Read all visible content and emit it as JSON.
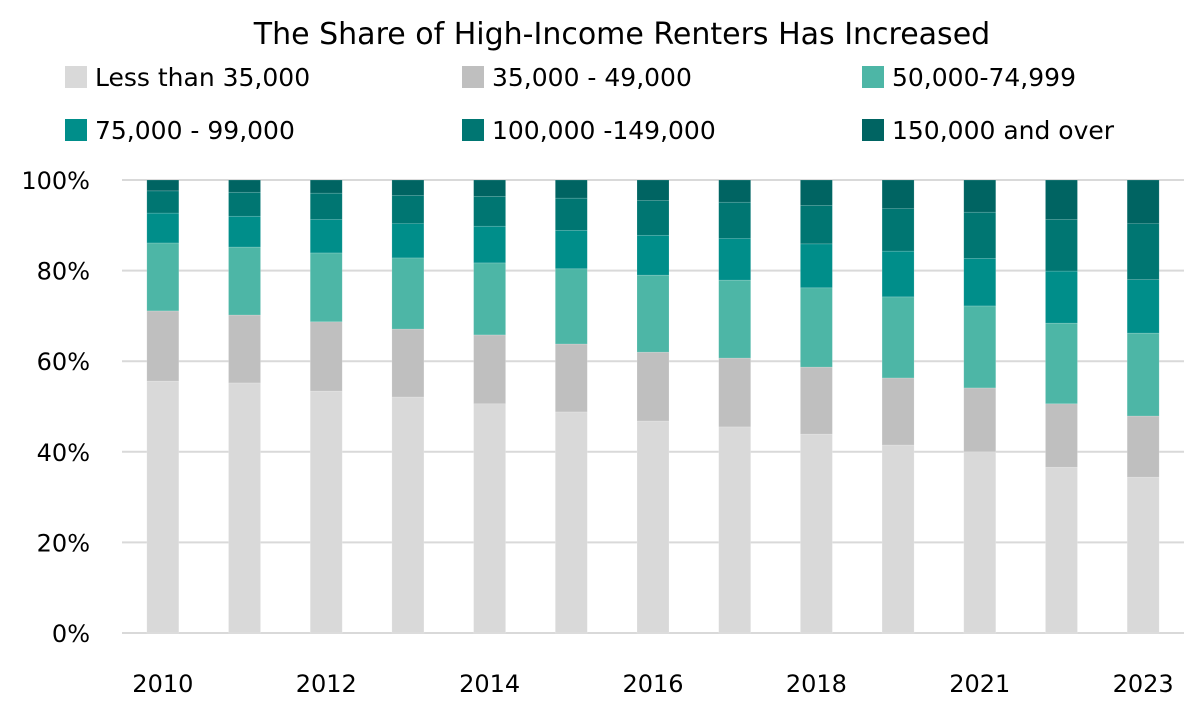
{
  "chart_data": {
    "type": "bar",
    "stacked": true,
    "title": "The Share of High-Income Renters Has Increased",
    "xlabel": "",
    "ylabel": "",
    "ylim": [
      0,
      100
    ],
    "y_ticks": [
      "0%",
      "20%",
      "40%",
      "60%",
      "80%",
      "100%"
    ],
    "y_tick_values": [
      0,
      20,
      40,
      60,
      80,
      100
    ],
    "grid": true,
    "legend_placement": "top",
    "categories": [
      "2010",
      "2011",
      "2012",
      "2013",
      "2014",
      "2015",
      "2016",
      "2017",
      "2018",
      "2019",
      "2021",
      "2022",
      "2023"
    ],
    "x_tick_labels": [
      "2010",
      "",
      "2012",
      "",
      "2014",
      "",
      "2016",
      "",
      "2018",
      "",
      "2021",
      "",
      "2023"
    ],
    "series": [
      {
        "name": "Less than 35,000",
        "color": "#d9d9d9",
        "values": [
          55.6,
          55.2,
          53.4,
          52.1,
          50.6,
          48.8,
          46.8,
          45.5,
          43.9,
          41.5,
          40.0,
          36.6,
          34.4
        ]
      },
      {
        "name": "35,000 - 49,000",
        "color": "#bfbfbf",
        "values": [
          15.5,
          15.0,
          15.3,
          15.0,
          15.2,
          15.0,
          15.2,
          15.2,
          14.8,
          14.8,
          14.1,
          14.0,
          13.5
        ]
      },
      {
        "name": "50,000-74,999",
        "color": "#4db6a6",
        "values": [
          15.0,
          15.0,
          15.2,
          15.7,
          15.9,
          16.6,
          17.0,
          17.2,
          17.5,
          17.9,
          18.1,
          17.8,
          18.3
        ]
      },
      {
        "name": "75,000 - 99,000",
        "color": "#008e8a",
        "values": [
          6.6,
          6.8,
          7.4,
          7.6,
          8.1,
          8.5,
          8.8,
          9.2,
          9.7,
          10.1,
          10.5,
          11.5,
          11.8
        ]
      },
      {
        "name": "100,000 -149,000",
        "color": "#007672",
        "values": [
          4.9,
          5.3,
          5.8,
          6.2,
          6.6,
          7.1,
          7.7,
          8.0,
          8.5,
          9.4,
          10.2,
          11.4,
          12.4
        ]
      },
      {
        "name": "150,000 and over",
        "color": "#006462",
        "values": [
          2.4,
          2.7,
          2.9,
          3.4,
          3.6,
          4.0,
          4.5,
          4.9,
          5.6,
          6.3,
          7.1,
          8.7,
          9.6
        ]
      }
    ]
  }
}
